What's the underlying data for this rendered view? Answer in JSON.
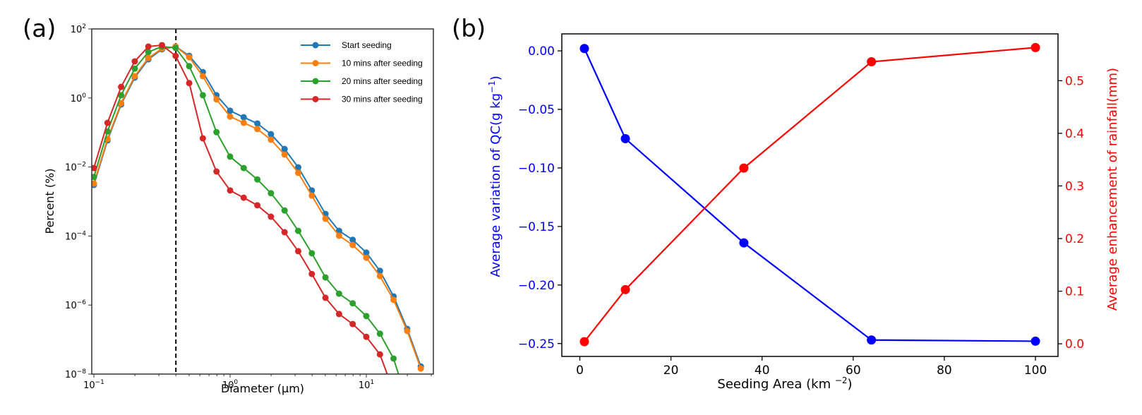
{
  "chart_data": [
    {
      "panel_label": "(a)",
      "type": "line",
      "title": "",
      "xlabel": "Diameter (µm)",
      "ylabel": "Percent (%)",
      "xscale": "log",
      "yscale": "log",
      "xlim": [
        0.1,
        31
      ],
      "ylim": [
        1e-08,
        100
      ],
      "x_ticks": [
        {
          "base": "10",
          "exp": "−1",
          "value": 0.1
        },
        {
          "base": "10",
          "exp": "0",
          "value": 1
        },
        {
          "base": "10",
          "exp": "1",
          "value": 10
        }
      ],
      "y_ticks": [
        {
          "base": "10",
          "exp": "2",
          "value": 100
        },
        {
          "base": "10",
          "exp": "0",
          "value": 1
        },
        {
          "base": "10",
          "exp": "−2",
          "value": 0.01
        },
        {
          "base": "10",
          "exp": "−4",
          "value": 0.0001
        },
        {
          "base": "10",
          "exp": "−6",
          "value": 1e-06
        },
        {
          "base": "10",
          "exp": "−8",
          "value": 1e-08
        }
      ],
      "vline": {
        "x": 0.4,
        "style": "dashed",
        "color": "#000000"
      },
      "legend_position": "top-right",
      "x_log10": [
        -1.0,
        -0.9,
        -0.8,
        -0.7,
        -0.6,
        -0.5,
        -0.4,
        -0.3,
        -0.2,
        -0.1,
        0.0,
        0.1,
        0.2,
        0.3,
        0.4,
        0.5,
        0.6,
        0.7,
        0.8,
        0.9,
        1.0,
        1.1,
        1.2,
        1.3,
        1.4
      ],
      "series": [
        {
          "name": "Start seeding",
          "color": "#1f77b4",
          "y_log10": [
            -2.52,
            -1.23,
            -0.19,
            0.59,
            1.12,
            1.41,
            1.49,
            1.22,
            0.75,
            0.08,
            -0.37,
            -0.56,
            -0.74,
            -1.05,
            -1.48,
            -2.01,
            -2.68,
            -3.36,
            -3.85,
            -4.11,
            -4.48,
            -5.01,
            -5.75,
            -6.69,
            -7.78
          ]
        },
        {
          "name": "10 mins after seeding",
          "color": "#ff7f0e",
          "y_log10": [
            -2.48,
            -1.19,
            -0.15,
            0.63,
            1.16,
            1.43,
            1.49,
            1.18,
            0.63,
            -0.04,
            -0.54,
            -0.72,
            -0.9,
            -1.21,
            -1.64,
            -2.17,
            -2.83,
            -3.5,
            -3.99,
            -4.26,
            -4.63,
            -5.16,
            -5.85,
            -6.75,
            -7.84
          ]
        },
        {
          "name": "20 mins after seeding",
          "color": "#2ca02c",
          "y_log10": [
            -2.29,
            -0.97,
            0.08,
            0.85,
            1.33,
            1.49,
            1.45,
            0.92,
            0.08,
            -0.99,
            -1.7,
            -2.03,
            -2.36,
            -2.76,
            -3.26,
            -3.85,
            -4.5,
            -5.2,
            -5.67,
            -5.95,
            -6.32,
            -6.83,
            -7.55,
            -8.8
          ]
        },
        {
          "name": "30 mins after seeding",
          "color": "#d62728",
          "y_log10": [
            -2.03,
            -0.72,
            0.32,
            1.06,
            1.49,
            1.53,
            1.22,
            0.43,
            -1.17,
            -2.13,
            -2.68,
            -2.89,
            -3.11,
            -3.44,
            -3.89,
            -4.44,
            -5.1,
            -5.79,
            -6.26,
            -6.55,
            -6.92,
            -7.43,
            -8.5
          ]
        }
      ]
    },
    {
      "panel_label": "(b)",
      "type": "line",
      "title": "",
      "xlabel": "Seeding Area (km ",
      "xlabel_sup": "−2",
      "xlabel_end": ")",
      "ylabel_left": "Average variation of QC(g kg",
      "ylabel_left_sup": "−1",
      "ylabel_left_end": ")",
      "ylabel_right": "Average enhancement of rainfall(mm)",
      "x": [
        1,
        10,
        36,
        64,
        100
      ],
      "xlim": [
        -3.95,
        104.95
      ],
      "ylim_left": [
        -0.261,
        0.0145
      ],
      "ylim_right": [
        -0.024,
        0.589
      ],
      "x_ticks": [
        "0",
        "20",
        "40",
        "60",
        "80",
        "100"
      ],
      "x_tick_values": [
        0,
        20,
        40,
        60,
        80,
        100
      ],
      "y_left_ticks": [
        "0.00",
        "−0.05",
        "−0.10",
        "−0.15",
        "−0.20",
        "−0.25"
      ],
      "y_left_tick_values": [
        0.0,
        -0.05,
        -0.1,
        -0.15,
        -0.2,
        -0.25
      ],
      "y_right_ticks": [
        "0.0",
        "0.1",
        "0.2",
        "0.3",
        "0.4",
        "0.5"
      ],
      "y_right_tick_values": [
        0.0,
        0.1,
        0.2,
        0.3,
        0.4,
        0.5
      ],
      "series": [
        {
          "name": "Average variation of QC",
          "axis": "left",
          "color": "#0000ff",
          "values": [
            0.002,
            -0.075,
            -0.164,
            -0.247,
            -0.248
          ]
        },
        {
          "name": "Average enhancement of rainfall",
          "axis": "right",
          "color": "#ff0000",
          "values": [
            0.004,
            0.103,
            0.334,
            0.536,
            0.563
          ]
        }
      ]
    }
  ]
}
